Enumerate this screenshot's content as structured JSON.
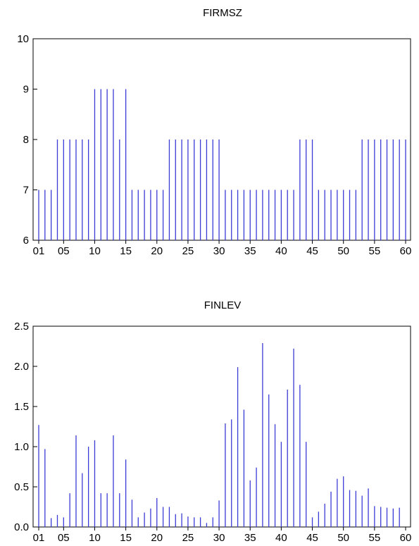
{
  "colors": {
    "spike": "#3b3bd6",
    "axis": "#000000"
  },
  "chart_data": [
    {
      "type": "bar",
      "title": "FIRMSZ",
      "ylim": [
        6,
        10
      ],
      "yticks": [
        "6",
        "7",
        "8",
        "9",
        "10"
      ],
      "xticks": [
        "01",
        "05",
        "10",
        "15",
        "20",
        "25",
        "30",
        "35",
        "40",
        "45",
        "50",
        "55",
        "60"
      ],
      "x": [
        1,
        2,
        3,
        4,
        5,
        6,
        7,
        8,
        9,
        10,
        11,
        12,
        13,
        14,
        15,
        16,
        17,
        18,
        19,
        20,
        21,
        22,
        23,
        24,
        25,
        26,
        27,
        28,
        29,
        30,
        31,
        32,
        33,
        34,
        35,
        36,
        37,
        38,
        39,
        40,
        41,
        42,
        43,
        44,
        45,
        46,
        47,
        48,
        49,
        50,
        51,
        52,
        53,
        54,
        55,
        56,
        57,
        58,
        59,
        60
      ],
      "values": [
        7,
        7,
        7,
        8,
        8,
        8,
        8,
        8,
        8,
        9,
        9,
        9,
        9,
        8,
        9,
        7,
        7,
        7,
        7,
        7,
        7,
        8,
        8,
        8,
        8,
        8,
        8,
        8,
        8,
        8,
        7,
        7,
        7,
        7,
        7,
        7,
        7,
        7,
        7,
        7,
        7,
        7,
        8,
        8,
        8,
        7,
        7,
        7,
        7,
        7,
        7,
        7,
        8,
        8,
        8,
        8,
        8,
        8,
        8,
        8
      ],
      "grid": false
    },
    {
      "type": "bar",
      "title": "FINLEV",
      "ylim": [
        0,
        2.5
      ],
      "yticks": [
        "0.0",
        "0.5",
        "1.0",
        "1.5",
        "2.0",
        "2.5"
      ],
      "xticks": [
        "01",
        "05",
        "10",
        "15",
        "20",
        "25",
        "30",
        "35",
        "40",
        "45",
        "50",
        "55",
        "60"
      ],
      "x": [
        1,
        2,
        3,
        4,
        5,
        6,
        7,
        8,
        9,
        10,
        11,
        12,
        13,
        14,
        15,
        16,
        17,
        18,
        19,
        20,
        21,
        22,
        23,
        24,
        25,
        26,
        27,
        28,
        29,
        30,
        31,
        32,
        33,
        34,
        35,
        36,
        37,
        38,
        39,
        40,
        41,
        42,
        43,
        44,
        45,
        46,
        47,
        48,
        49,
        50,
        51,
        52,
        53,
        54,
        55,
        56,
        57,
        58,
        59,
        60
      ],
      "values": [
        1.27,
        0.97,
        0.11,
        0.15,
        0.12,
        0.42,
        1.14,
        0.67,
        1.0,
        1.08,
        0.42,
        0.42,
        1.14,
        0.42,
        0.84,
        0.34,
        0.12,
        0.18,
        0.23,
        0.36,
        0.25,
        0.25,
        0.16,
        0.17,
        0.13,
        0.12,
        0.12,
        0.05,
        0.12,
        0.33,
        1.29,
        1.34,
        1.99,
        1.46,
        0.58,
        0.74,
        2.29,
        1.65,
        1.28,
        1.06,
        1.71,
        2.22,
        1.77,
        1.06,
        0.12,
        0.19,
        0.29,
        0.44,
        0.6,
        0.63,
        0.46,
        0.45,
        0.39,
        0.48,
        0.26,
        0.25,
        0.24,
        0.23,
        0.24,
        0.0
      ],
      "grid": false
    }
  ]
}
